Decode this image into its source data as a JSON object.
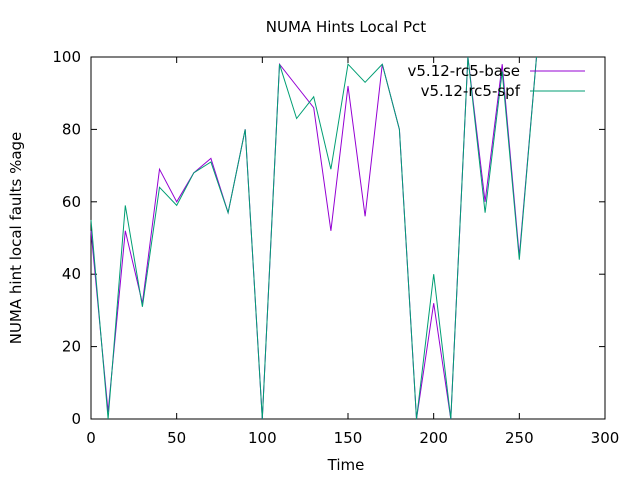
{
  "chart_data": {
    "type": "line",
    "title": "NUMA Hints Local Pct",
    "xlabel": "Time",
    "ylabel": "NUMA hint local faults %age",
    "xlim": [
      0,
      300
    ],
    "ylim": [
      0,
      100
    ],
    "xticks": [
      0,
      50,
      100,
      150,
      200,
      250,
      300
    ],
    "yticks": [
      0,
      20,
      40,
      60,
      80,
      100
    ],
    "grid": false,
    "legend_position": "top-right",
    "series": [
      {
        "name": "v5.12-rc5-base",
        "color": "#9400d3",
        "x": [
          0,
          10,
          20,
          30,
          40,
          50,
          60,
          70,
          80,
          90,
          100,
          110,
          120,
          130,
          140,
          150,
          160,
          170,
          180,
          190,
          200,
          210,
          220,
          230,
          240,
          250,
          260
        ],
        "y": [
          52,
          2,
          52,
          32,
          69,
          60,
          68,
          72,
          57,
          80,
          0,
          98,
          92,
          86,
          52,
          92,
          56,
          98,
          80,
          0,
          32,
          0,
          100,
          60,
          98,
          45,
          100
        ]
      },
      {
        "name": "v5.12-rc5-spf",
        "color": "#009e73",
        "x": [
          0,
          10,
          20,
          30,
          40,
          50,
          60,
          70,
          80,
          90,
          100,
          110,
          120,
          130,
          140,
          150,
          160,
          170,
          180,
          190,
          200,
          210,
          220,
          230,
          240,
          250,
          260
        ],
        "y": [
          55,
          0,
          59,
          31,
          64,
          59,
          68,
          71,
          57,
          80,
          0,
          98,
          83,
          89,
          69,
          98,
          93,
          98,
          80,
          0,
          40,
          0,
          100,
          57,
          96,
          44,
          100
        ]
      }
    ]
  }
}
